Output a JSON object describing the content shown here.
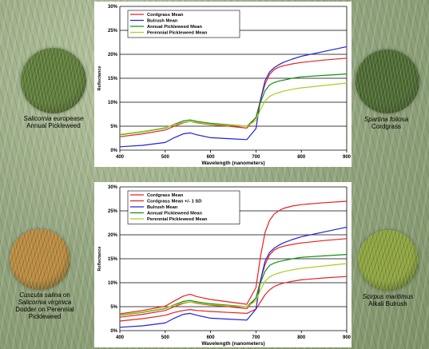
{
  "plants": [
    {
      "id": "salicornia-europea",
      "scientific": "Salicornia europease",
      "common": "Annual Pickleweed",
      "photo_color": "#5f7e3a"
    },
    {
      "id": "spartina-foliosa",
      "scientific": "Spartina foliosa",
      "common": "Cordgrass",
      "photo_color": "#4d6b32"
    },
    {
      "id": "cuscuta-salina",
      "scientific": "Cuscuta salina",
      "connector": "on",
      "host": "Salicornia virginica",
      "common": "Dodder on Perennial Pickleweed",
      "photo_color": "#b98a3e"
    },
    {
      "id": "scirpus-maritimus",
      "scientific": "Scirpus maritimus",
      "common": "Alkali Bulrush",
      "photo_color": "#8da33e"
    }
  ],
  "chart_data": [
    {
      "type": "line",
      "title": "",
      "xlabel": "Wavelength (nanometers)",
      "ylabel": "Reflectance",
      "xlim": [
        400,
        900
      ],
      "ylim": [
        0,
        30
      ],
      "x_ticks": [
        "400",
        "500",
        "600",
        "700",
        "800",
        "900"
      ],
      "y_ticks": [
        "0%",
        "5%",
        "10%",
        "15%",
        "20%",
        "25%",
        "30%"
      ],
      "grid": "horizontal",
      "legend": "top-left",
      "x": [
        400,
        450,
        500,
        520,
        540,
        555,
        570,
        600,
        640,
        680,
        700,
        710,
        720,
        730,
        740,
        750,
        760,
        780,
        800,
        850,
        900
      ],
      "series": [
        {
          "name": "Cordgrass Mean",
          "color": "#e82020",
          "values": [
            2.8,
            3.4,
            4.2,
            5.0,
            5.7,
            6.0,
            5.7,
            5.3,
            5.0,
            4.6,
            6.8,
            10.5,
            13.8,
            15.8,
            16.8,
            17.3,
            17.6,
            18.0,
            18.3,
            18.8,
            19.2
          ]
        },
        {
          "name": "Bulrush Mean",
          "color": "#2020e0",
          "values": [
            0.7,
            1.0,
            1.6,
            2.6,
            3.4,
            3.6,
            3.2,
            2.6,
            2.4,
            2.2,
            4.5,
            10.5,
            14.5,
            16.3,
            17.2,
            17.8,
            18.3,
            19.0,
            19.6,
            20.6,
            21.6
          ]
        },
        {
          "name": "Annual Pickleweed Mean",
          "color": "#109010",
          "values": [
            3.2,
            3.8,
            4.6,
            5.4,
            6.1,
            6.3,
            6.0,
            5.6,
            5.3,
            5.0,
            6.8,
            10.0,
            12.4,
            13.6,
            14.1,
            14.4,
            14.6,
            15.0,
            15.3,
            15.6,
            15.9
          ]
        },
        {
          "name": "Perennial Pickleweed Mean",
          "color": "#a8d020",
          "values": [
            3.3,
            3.9,
            4.7,
            5.3,
            5.8,
            6.0,
            5.8,
            5.4,
            5.2,
            5.0,
            6.2,
            8.5,
            10.3,
            11.2,
            11.7,
            12.0,
            12.3,
            12.7,
            13.0,
            13.5,
            14.0
          ]
        }
      ]
    },
    {
      "type": "line",
      "title": "",
      "xlabel": "Wavelength (nanometers)",
      "ylabel": "Reflectance",
      "xlim": [
        400,
        900
      ],
      "ylim": [
        0,
        30
      ],
      "x_ticks": [
        "400",
        "500",
        "600",
        "700",
        "800",
        "900"
      ],
      "y_ticks": [
        "0%",
        "5%",
        "10%",
        "15%",
        "20%",
        "25%",
        "30%"
      ],
      "grid": "horizontal",
      "legend": "top-left",
      "x": [
        400,
        450,
        500,
        520,
        540,
        555,
        570,
        600,
        640,
        680,
        700,
        710,
        720,
        730,
        740,
        750,
        760,
        780,
        800,
        850,
        900
      ],
      "series": [
        {
          "name": "Cordgrass Mean",
          "color": "#e82020",
          "values": [
            2.8,
            3.4,
            4.2,
            5.0,
            5.7,
            6.0,
            5.7,
            5.3,
            5.0,
            4.6,
            6.8,
            10.5,
            13.8,
            15.8,
            16.8,
            17.3,
            17.6,
            18.0,
            18.3,
            18.8,
            19.2
          ]
        },
        {
          "name": "Cordgrass Mean  +/- 1 SD",
          "color": "#e82020",
          "values": [
            3.5,
            4.2,
            5.1,
            6.2,
            7.2,
            7.6,
            7.1,
            6.5,
            6.0,
            5.5,
            9.0,
            15.5,
            20.5,
            23.0,
            24.3,
            25.0,
            25.5,
            26.0,
            26.3,
            26.7,
            27.0
          ]
        },
        {
          "name": "",
          "color": "#e82020",
          "values": [
            2.0,
            2.5,
            3.2,
            3.8,
            4.2,
            4.4,
            4.2,
            4.0,
            3.8,
            3.6,
            4.5,
            6.0,
            7.5,
            8.5,
            9.2,
            9.6,
            9.9,
            10.3,
            10.6,
            11.0,
            11.3
          ]
        },
        {
          "name": "Bulrush Mean",
          "color": "#2020e0",
          "values": [
            0.7,
            1.0,
            1.6,
            2.6,
            3.4,
            3.6,
            3.2,
            2.6,
            2.4,
            2.2,
            4.5,
            10.5,
            14.5,
            16.3,
            17.2,
            17.8,
            18.3,
            19.0,
            19.6,
            20.6,
            21.6
          ]
        },
        {
          "name": "Annual Pickleweed Mean",
          "color": "#109010",
          "values": [
            3.2,
            3.8,
            4.6,
            5.4,
            6.1,
            6.3,
            6.0,
            5.6,
            5.3,
            5.0,
            6.8,
            10.0,
            12.4,
            13.6,
            14.1,
            14.4,
            14.6,
            15.0,
            15.3,
            15.6,
            15.9
          ]
        },
        {
          "name": "Perennial Pickleweed Mean",
          "color": "#a8d020",
          "values": [
            3.3,
            3.9,
            4.7,
            5.3,
            5.8,
            6.0,
            5.8,
            5.4,
            5.2,
            5.0,
            6.2,
            8.5,
            10.3,
            11.2,
            11.7,
            12.0,
            12.3,
            12.7,
            13.0,
            13.5,
            14.0
          ]
        }
      ]
    }
  ]
}
